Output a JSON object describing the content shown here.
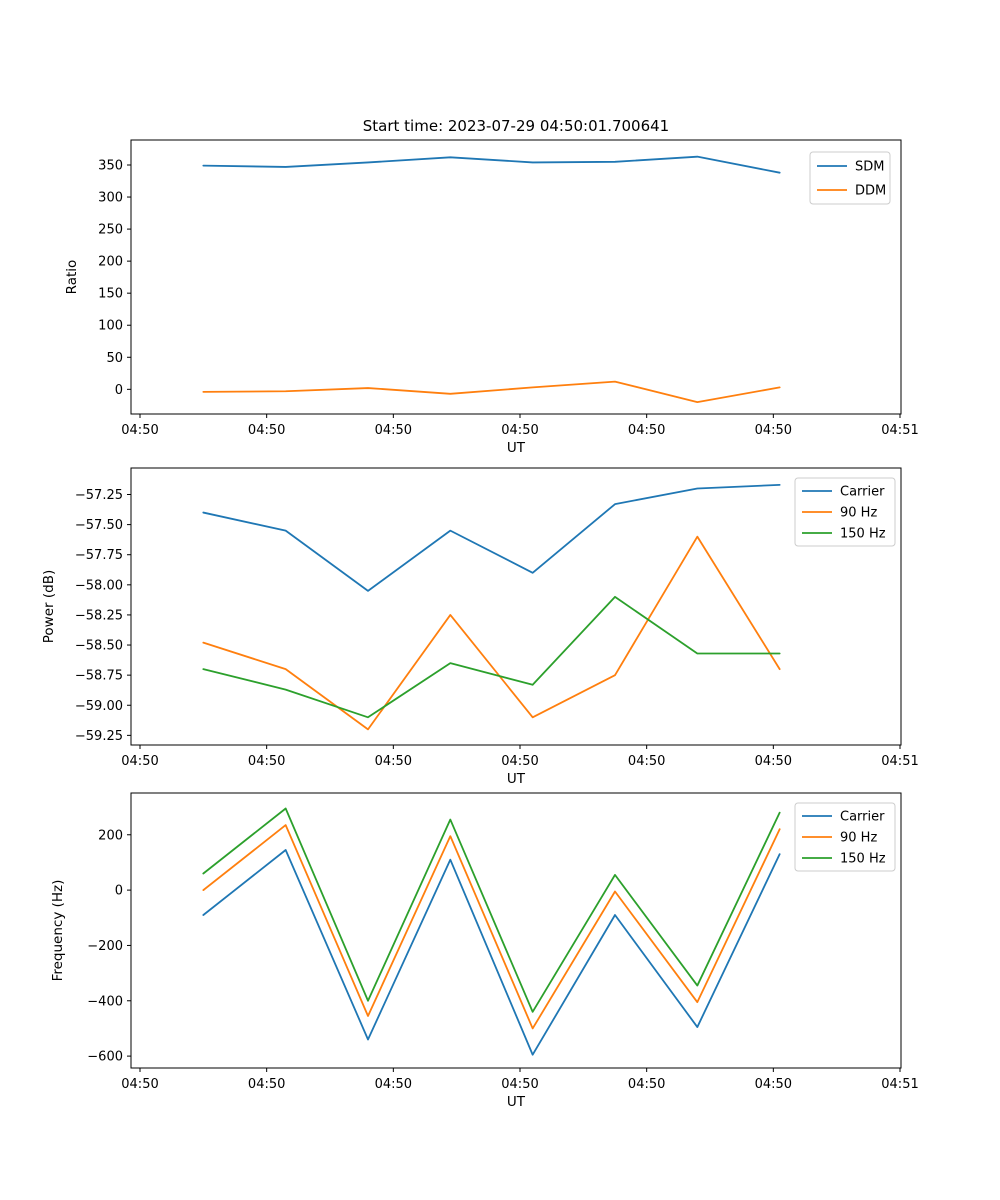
{
  "title": "Start time: 2023-07-29 04:50:01.700641",
  "figure": {
    "background": "#ffffff",
    "spine_color": "#000000",
    "legend_border_color": "#cccccc"
  },
  "chart_data": [
    {
      "type": "line",
      "title": "Start time: 2023-07-29 04:50:01.700641",
      "xlabel": "UT",
      "ylabel": "Ratio",
      "grid": false,
      "legend_position": "upper right",
      "xticklabels": [
        "04:50",
        "04:50",
        "04:50",
        "04:50",
        "04:50",
        "04:50",
        "04:51"
      ],
      "xtick_seconds": [
        0,
        10,
        20,
        30,
        40,
        50,
        60
      ],
      "xlim_seconds": [
        -0.7,
        60.1
      ],
      "yticks": [
        0,
        50,
        100,
        150,
        200,
        250,
        300,
        350
      ],
      "yticklabels": [
        "0",
        "50",
        "100",
        "150",
        "200",
        "250",
        "300",
        "350"
      ],
      "ylim": [
        -38.5,
        389
      ],
      "x_seconds": [
        5,
        11.5,
        18,
        24.5,
        31,
        37.5,
        44,
        50.5
      ],
      "series": [
        {
          "name": "SDM",
          "color": "#1f77b4",
          "values": [
            349,
            347,
            354,
            362,
            354,
            355,
            363,
            338
          ]
        },
        {
          "name": "DDM",
          "color": "#ff7f0e",
          "values": [
            -4,
            -3,
            2,
            -7,
            3,
            12,
            -20,
            3
          ]
        }
      ]
    },
    {
      "type": "line",
      "xlabel": "UT",
      "ylabel": "Power (dB)",
      "grid": false,
      "legend_position": "upper right",
      "xticklabels": [
        "04:50",
        "04:50",
        "04:50",
        "04:50",
        "04:50",
        "04:50",
        "04:51"
      ],
      "xtick_seconds": [
        0,
        10,
        20,
        30,
        40,
        50,
        60
      ],
      "xlim_seconds": [
        -0.7,
        60.1
      ],
      "yticks": [
        -59.25,
        -59.0,
        -58.75,
        -58.5,
        -58.25,
        -58.0,
        -57.75,
        -57.5,
        -57.25
      ],
      "yticklabels": [
        "−59.25",
        "−59.00",
        "−58.75",
        "−58.50",
        "−58.25",
        "−58.00",
        "−57.75",
        "−57.50",
        "−57.25"
      ],
      "ylim": [
        -59.33,
        -57.03
      ],
      "x_seconds": [
        5,
        11.5,
        18,
        24.5,
        31,
        37.5,
        44,
        50.5
      ],
      "series": [
        {
          "name": "Carrier",
          "color": "#1f77b4",
          "values": [
            -57.4,
            -57.55,
            -58.05,
            -57.55,
            -57.9,
            -57.33,
            -57.2,
            -57.17
          ]
        },
        {
          "name": "90 Hz",
          "color": "#ff7f0e",
          "values": [
            -58.48,
            -58.7,
            -59.2,
            -58.25,
            -59.1,
            -58.75,
            -57.6,
            -58.7
          ]
        },
        {
          "name": "150 Hz",
          "color": "#2ca02c",
          "values": [
            -58.7,
            -58.87,
            -59.1,
            -58.65,
            -58.83,
            -58.1,
            -58.57,
            -58.57
          ]
        }
      ]
    },
    {
      "type": "line",
      "xlabel": "UT",
      "ylabel": "Frequency (Hz)",
      "grid": false,
      "legend_position": "upper right",
      "xticklabels": [
        "04:50",
        "04:50",
        "04:50",
        "04:50",
        "04:50",
        "04:50",
        "04:51"
      ],
      "xtick_seconds": [
        0,
        10,
        20,
        30,
        40,
        50,
        60
      ],
      "xlim_seconds": [
        -0.7,
        60.1
      ],
      "yticks": [
        -600,
        -400,
        -200,
        0,
        200
      ],
      "yticklabels": [
        "−600",
        "−400",
        "−200",
        "0",
        "200"
      ],
      "ylim": [
        -643,
        351
      ],
      "x_seconds": [
        5,
        11.5,
        18,
        24.5,
        31,
        37.5,
        44,
        50.5
      ],
      "series": [
        {
          "name": "Carrier",
          "color": "#1f77b4",
          "values": [
            -90,
            145,
            -540,
            110,
            -595,
            -90,
            -495,
            130
          ]
        },
        {
          "name": "90 Hz",
          "color": "#ff7f0e",
          "values": [
            0,
            235,
            -455,
            195,
            -500,
            -5,
            -405,
            220
          ]
        },
        {
          "name": "150 Hz",
          "color": "#2ca02c",
          "values": [
            60,
            295,
            -400,
            255,
            -440,
            55,
            -345,
            280
          ]
        }
      ]
    }
  ]
}
